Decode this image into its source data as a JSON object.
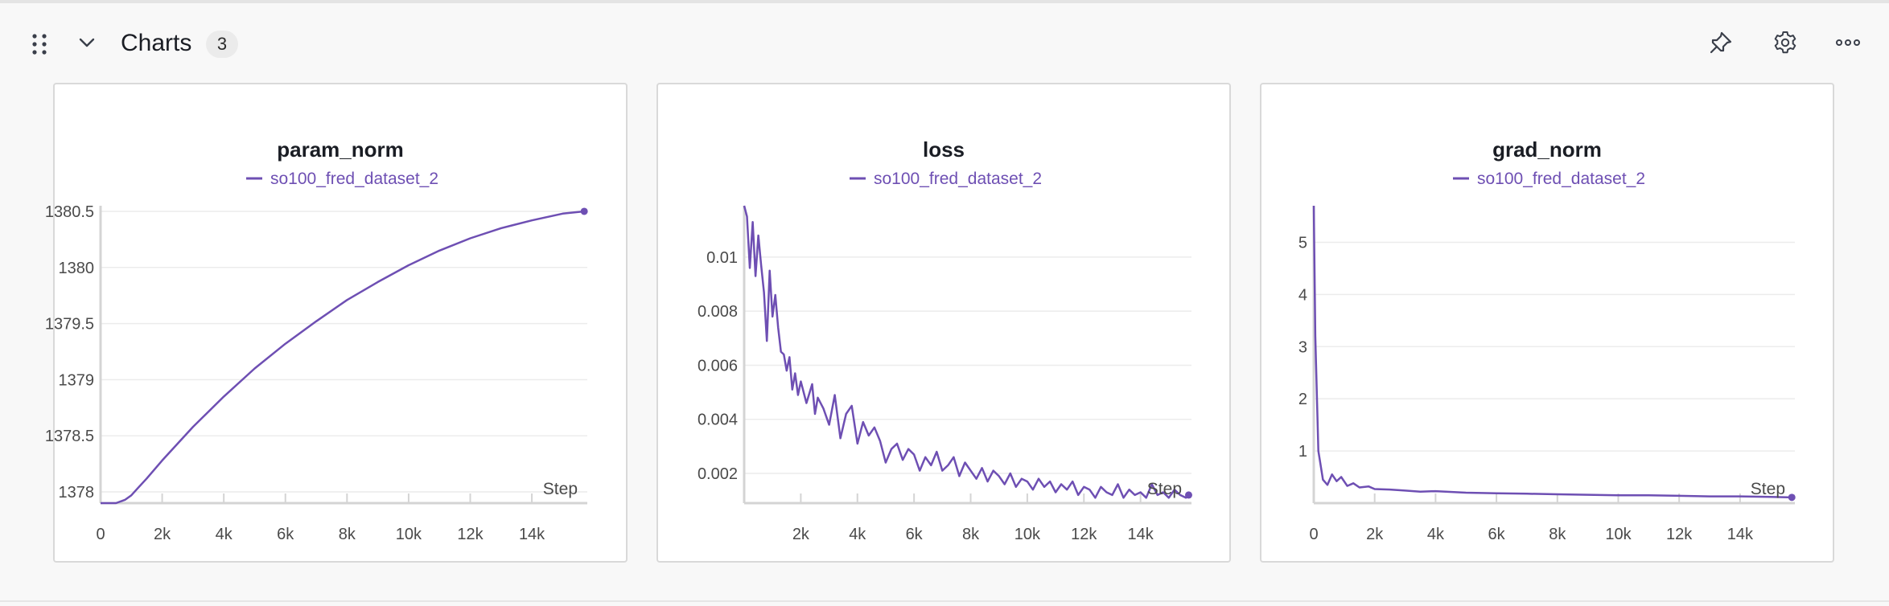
{
  "section": {
    "title": "Charts",
    "count": "3"
  },
  "icons": {
    "drag": "drag-handle-icon",
    "collapse": "chevron-down-icon",
    "pin": "pin-icon",
    "settings": "gear-icon",
    "more": "more-horizontal-icon"
  },
  "colors": {
    "series": "#6e4fb3",
    "grid": "#ececec",
    "axis": "#d4d4d4"
  },
  "chart_data": [
    {
      "type": "line",
      "title": "param_norm",
      "xlabel": "Step",
      "ylabel": "",
      "xlim": [
        0,
        15800
      ],
      "ylim": [
        1377.9,
        1380.55
      ],
      "xticks": [
        0,
        2000,
        4000,
        6000,
        8000,
        10000,
        12000,
        14000
      ],
      "xtick_labels": [
        "0",
        "2k",
        "4k",
        "6k",
        "8k",
        "10k",
        "12k",
        "14k"
      ],
      "yticks": [
        1378,
        1378.5,
        1379,
        1379.5,
        1380,
        1380.5
      ],
      "ytick_labels": [
        "1378",
        "1378.5",
        "1379",
        "1379.5",
        "1380",
        "1380.5"
      ],
      "series": [
        {
          "name": "so100_fred_dataset_2",
          "x": [
            0,
            500,
            800,
            1000,
            1200,
            1500,
            2000,
            3000,
            4000,
            5000,
            6000,
            7000,
            8000,
            9000,
            10000,
            11000,
            12000,
            13000,
            14000,
            15000,
            15700
          ],
          "y": [
            1377.9,
            1377.9,
            1377.93,
            1377.97,
            1378.03,
            1378.12,
            1378.28,
            1378.58,
            1378.85,
            1379.1,
            1379.32,
            1379.52,
            1379.71,
            1379.87,
            1380.02,
            1380.15,
            1380.26,
            1380.35,
            1380.42,
            1380.48,
            1380.5
          ]
        }
      ]
    },
    {
      "type": "line",
      "title": "loss",
      "xlabel": "Step",
      "ylabel": "",
      "xlim": [
        0,
        15800
      ],
      "ylim": [
        0.0009,
        0.0119
      ],
      "xticks": [
        2000,
        4000,
        6000,
        8000,
        10000,
        12000,
        14000
      ],
      "xtick_labels": [
        "2k",
        "4k",
        "6k",
        "8k",
        "10k",
        "12k",
        "14k"
      ],
      "yticks": [
        0.002,
        0.004,
        0.006,
        0.008,
        0.01
      ],
      "ytick_labels": [
        "0.002",
        "0.004",
        "0.006",
        "0.008",
        "0.01"
      ],
      "series": [
        {
          "name": "so100_fred_dataset_2",
          "x": [
            0,
            100,
            200,
            300,
            400,
            500,
            600,
            700,
            800,
            900,
            1000,
            1100,
            1200,
            1300,
            1400,
            1500,
            1600,
            1700,
            1800,
            1900,
            2000,
            2200,
            2400,
            2500,
            2600,
            2800,
            3000,
            3200,
            3400,
            3600,
            3800,
            4000,
            4200,
            4400,
            4600,
            4800,
            5000,
            5200,
            5400,
            5600,
            5800,
            6000,
            6200,
            6400,
            6600,
            6800,
            7000,
            7200,
            7400,
            7600,
            7800,
            8000,
            8200,
            8400,
            8600,
            8800,
            9000,
            9200,
            9400,
            9600,
            9800,
            10000,
            10200,
            10400,
            10600,
            10800,
            11000,
            11200,
            11400,
            11600,
            11800,
            12000,
            12200,
            12400,
            12600,
            12800,
            13000,
            13200,
            13400,
            13600,
            13800,
            14000,
            14200,
            14400,
            14600,
            14800,
            15000,
            15200,
            15400,
            15600,
            15700
          ],
          "y": [
            0.0119,
            0.0115,
            0.0096,
            0.0113,
            0.0093,
            0.0108,
            0.0097,
            0.0087,
            0.0069,
            0.0095,
            0.0078,
            0.0086,
            0.0074,
            0.0065,
            0.0064,
            0.0058,
            0.0063,
            0.0051,
            0.0057,
            0.0049,
            0.0054,
            0.0046,
            0.0053,
            0.0042,
            0.0048,
            0.0044,
            0.0038,
            0.0049,
            0.0033,
            0.0042,
            0.0045,
            0.0031,
            0.0039,
            0.0034,
            0.0037,
            0.0032,
            0.0024,
            0.0029,
            0.0031,
            0.0025,
            0.0029,
            0.0027,
            0.0021,
            0.0026,
            0.0023,
            0.0028,
            0.0021,
            0.0023,
            0.0026,
            0.0019,
            0.0024,
            0.0021,
            0.0018,
            0.0022,
            0.0017,
            0.0021,
            0.0019,
            0.0016,
            0.002,
            0.0015,
            0.0018,
            0.0017,
            0.0014,
            0.0018,
            0.0015,
            0.0017,
            0.0013,
            0.0016,
            0.0014,
            0.0017,
            0.0012,
            0.0015,
            0.0014,
            0.0011,
            0.0015,
            0.0013,
            0.0012,
            0.0016,
            0.0011,
            0.0014,
            0.0012,
            0.0013,
            0.0011,
            0.0016,
            0.0012,
            0.0013,
            0.0011,
            0.0014,
            0.0012,
            0.0011,
            0.0012
          ]
        }
      ]
    },
    {
      "type": "line",
      "title": "grad_norm",
      "xlabel": "Step",
      "ylabel": "",
      "xlim": [
        0,
        15800
      ],
      "ylim": [
        0,
        5.7
      ],
      "xticks": [
        0,
        2000,
        4000,
        6000,
        8000,
        10000,
        12000,
        14000
      ],
      "xtick_labels": [
        "0",
        "2k",
        "4k",
        "6k",
        "8k",
        "10k",
        "12k",
        "14k"
      ],
      "yticks": [
        1,
        2,
        3,
        4,
        5
      ],
      "ytick_labels": [
        "1",
        "2",
        "3",
        "4",
        "5"
      ],
      "series": [
        {
          "name": "so100_fred_dataset_2",
          "x": [
            0,
            50,
            150,
            300,
            450,
            600,
            750,
            900,
            1100,
            1300,
            1500,
            1800,
            2000,
            2500,
            3000,
            3500,
            4000,
            5000,
            6000,
            7000,
            8000,
            9000,
            10000,
            11000,
            12000,
            13000,
            14000,
            15000,
            15700
          ],
          "y": [
            5.7,
            3.2,
            1.0,
            0.45,
            0.35,
            0.55,
            0.42,
            0.5,
            0.33,
            0.38,
            0.3,
            0.32,
            0.27,
            0.26,
            0.24,
            0.22,
            0.23,
            0.2,
            0.19,
            0.18,
            0.17,
            0.16,
            0.15,
            0.15,
            0.14,
            0.13,
            0.13,
            0.12,
            0.11
          ]
        }
      ]
    }
  ]
}
